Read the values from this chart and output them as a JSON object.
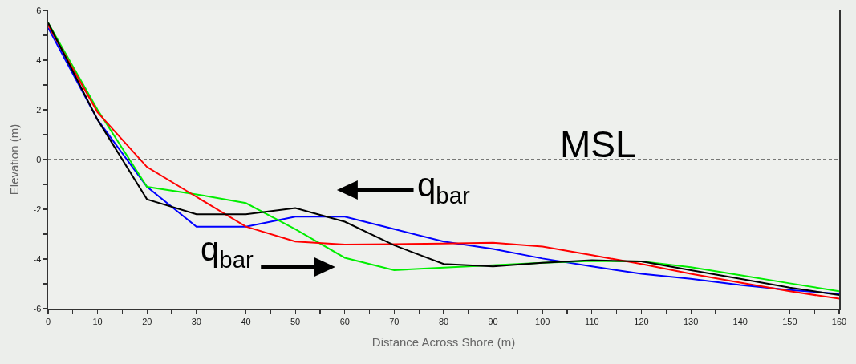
{
  "chart_data": {
    "type": "line",
    "xlabel": "Distance Across Shore (m)",
    "ylabel": "Elevation (m)",
    "x": [
      0,
      10,
      20,
      30,
      40,
      50,
      60,
      70,
      80,
      90,
      100,
      110,
      120,
      130,
      140,
      150,
      160
    ],
    "series": [
      {
        "color": "#0000ff",
        "values": [
          5.3,
          1.6,
          -1.1,
          -2.7,
          -2.7,
          -2.3,
          -2.3,
          -2.8,
          -3.3,
          -3.6,
          -3.98,
          -4.3,
          -4.6,
          -4.8,
          -5.05,
          -5.25,
          -5.4
        ]
      },
      {
        "color": "#00ee00",
        "values": [
          5.5,
          2.0,
          -1.1,
          -1.4,
          -1.75,
          -2.8,
          -3.95,
          -4.45,
          -4.35,
          -4.25,
          -4.15,
          -4.08,
          -4.1,
          -4.33,
          -4.65,
          -4.98,
          -5.3
        ]
      },
      {
        "color": "#ff0000",
        "values": [
          5.4,
          1.9,
          -0.3,
          -1.5,
          -2.7,
          -3.3,
          -3.42,
          -3.4,
          -3.38,
          -3.35,
          -3.5,
          -3.85,
          -4.2,
          -4.6,
          -4.95,
          -5.3,
          -5.6
        ]
      },
      {
        "color": "#000000",
        "values": [
          5.5,
          1.6,
          -1.6,
          -2.2,
          -2.2,
          -1.95,
          -2.5,
          -3.45,
          -4.2,
          -4.3,
          -4.15,
          -4.05,
          -4.1,
          -4.45,
          -4.8,
          -5.15,
          -5.45
        ]
      }
    ],
    "xlim": [
      0,
      160
    ],
    "xticks": [
      0,
      {
        "value": 5,
        "label": null
      },
      10,
      {
        "value": 15,
        "label": null
      },
      20,
      {
        "value": 25,
        "label": null
      },
      30,
      {
        "value": 35,
        "label": null
      },
      40,
      {
        "value": 45,
        "label": null
      },
      50,
      {
        "value": 55,
        "label": null
      },
      60,
      {
        "value": 65,
        "label": null
      },
      70,
      {
        "value": 75,
        "label": null
      },
      80,
      {
        "value": 85,
        "label": null
      },
      90,
      {
        "value": 95,
        "label": null
      },
      100,
      {
        "value": 105,
        "label": null
      },
      110,
      {
        "value": 115,
        "label": null
      },
      120,
      {
        "value": 125,
        "label": null
      },
      130,
      {
        "value": 135,
        "label": null
      },
      140,
      {
        "value": 145,
        "label": null
      },
      150,
      {
        "value": 155,
        "label": null
      },
      160
    ],
    "ylim": [
      -6,
      6
    ],
    "yticks": [
      -6,
      {
        "value": -5,
        "label": null
      },
      -4,
      {
        "value": -3,
        "label": null
      },
      -2,
      {
        "value": -1,
        "label": null
      },
      0,
      {
        "value": 1,
        "label": null
      },
      2,
      {
        "value": 3,
        "label": null
      },
      4,
      {
        "value": 5,
        "label": null
      },
      6
    ],
    "ref_lines": [
      {
        "axis": "y",
        "value": 0,
        "label": "MSL",
        "color": "#000000",
        "line_style": "dashed"
      }
    ],
    "annotations": [
      "q$_{bar}$",
      "q$_{bar}$"
    ]
  }
}
